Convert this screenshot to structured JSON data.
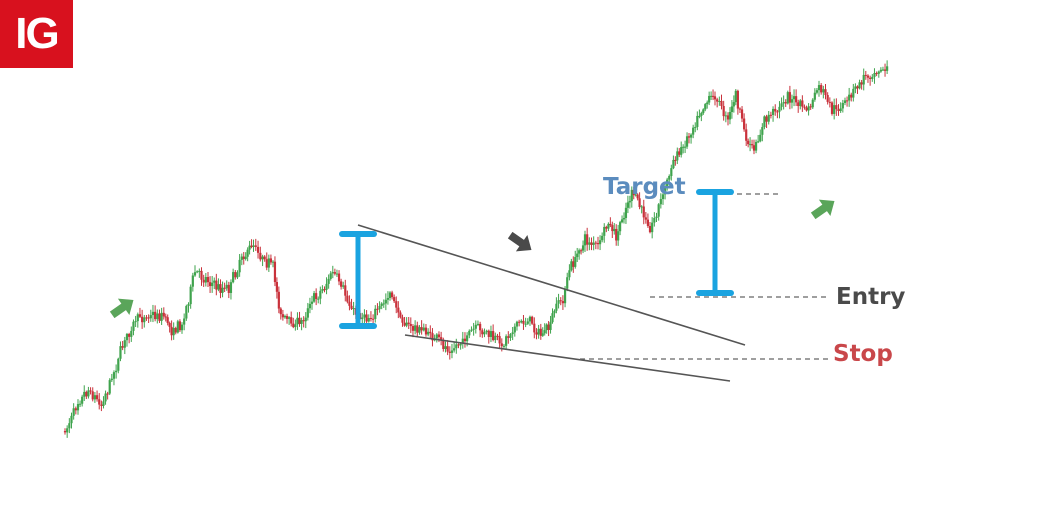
{
  "logo": {
    "text": "IG",
    "color": "#d8111e"
  },
  "labels": {
    "target": "Target",
    "entry": "Entry",
    "stop": "Stop"
  },
  "colors": {
    "bull": "#3fa34d",
    "bear": "#c9313b",
    "measure": "#1aa3e0",
    "trendline": "#555555",
    "arrow_up": "#5aa55a",
    "arrow_down": "#4a4a4a",
    "dashed": "#666666"
  },
  "icons": {
    "trend_up": "arrow-up-right-icon",
    "trend_down": "arrow-down-right-icon"
  },
  "chart_data": {
    "type": "candlestick",
    "pattern": "falling wedge breakout",
    "title": "",
    "xlabel": "",
    "ylabel": "",
    "grid": false,
    "axes_visible": false,
    "price_path": [
      [
        0,
        432
      ],
      [
        10,
        400
      ],
      [
        18,
        390
      ],
      [
        28,
        405
      ],
      [
        36,
        378
      ],
      [
        46,
        340
      ],
      [
        56,
        318
      ],
      [
        66,
        315
      ],
      [
        76,
        316
      ],
      [
        82,
        330
      ],
      [
        90,
        325
      ],
      [
        100,
        272
      ],
      [
        110,
        280
      ],
      [
        118,
        288
      ],
      [
        126,
        288
      ],
      [
        136,
        258
      ],
      [
        145,
        245
      ],
      [
        152,
        258
      ],
      [
        160,
        268
      ],
      [
        166,
        315
      ],
      [
        174,
        325
      ],
      [
        182,
        322
      ],
      [
        190,
        300
      ],
      [
        198,
        290
      ],
      [
        206,
        272
      ],
      [
        214,
        290
      ],
      [
        222,
        312
      ],
      [
        232,
        318
      ],
      [
        242,
        310
      ],
      [
        250,
        292
      ],
      [
        258,
        318
      ],
      [
        266,
        328
      ],
      [
        276,
        330
      ],
      [
        286,
        340
      ],
      [
        296,
        350
      ],
      [
        306,
        340
      ],
      [
        316,
        328
      ],
      [
        326,
        335
      ],
      [
        336,
        345
      ],
      [
        346,
        325
      ],
      [
        356,
        320
      ],
      [
        366,
        335
      ],
      [
        372,
        328
      ],
      [
        378,
        305
      ],
      [
        383,
        300
      ],
      [
        388,
        270
      ],
      [
        394,
        255
      ],
      [
        400,
        240
      ],
      [
        410,
        247
      ],
      [
        418,
        222
      ],
      [
        424,
        238
      ],
      [
        430,
        212
      ],
      [
        436,
        192
      ],
      [
        442,
        205
      ],
      [
        450,
        230
      ],
      [
        460,
        195
      ],
      [
        468,
        160
      ],
      [
        474,
        150
      ],
      [
        480,
        135
      ],
      [
        488,
        112
      ],
      [
        494,
        100
      ],
      [
        500,
        96
      ],
      [
        510,
        120
      ],
      [
        516,
        95
      ],
      [
        524,
        140
      ],
      [
        530,
        150
      ],
      [
        538,
        120
      ],
      [
        548,
        110
      ],
      [
        556,
        95
      ],
      [
        564,
        105
      ],
      [
        572,
        110
      ],
      [
        580,
        85
      ],
      [
        590,
        110
      ],
      [
        600,
        105
      ],
      [
        608,
        90
      ],
      [
        616,
        75
      ],
      [
        626,
        70
      ],
      [
        634,
        68
      ]
    ],
    "wedge": {
      "upper_line": [
        [
          358,
          225
        ],
        [
          745,
          345
        ]
      ],
      "lower_line": [
        [
          405,
          335
        ],
        [
          730,
          381
        ]
      ]
    },
    "measure_bars": [
      {
        "x": 358,
        "top": 234,
        "bottom": 326,
        "meaning": "pattern height"
      },
      {
        "x": 715,
        "top": 192,
        "bottom": 293,
        "meaning": "projected target"
      }
    ],
    "levels": [
      {
        "name": "Target",
        "y": 194,
        "x_start": 728,
        "x_end": 780
      },
      {
        "name": "Entry",
        "y": 297,
        "x_start": 650,
        "x_end": 828
      },
      {
        "name": "Stop",
        "y": 359,
        "x_start": 580,
        "x_end": 828
      }
    ],
    "trend_arrows": [
      {
        "x": 122,
        "y": 308,
        "direction": "up-right"
      },
      {
        "x": 520,
        "y": 242,
        "direction": "down-right"
      },
      {
        "x": 823,
        "y": 209,
        "direction": "up-right"
      }
    ]
  }
}
